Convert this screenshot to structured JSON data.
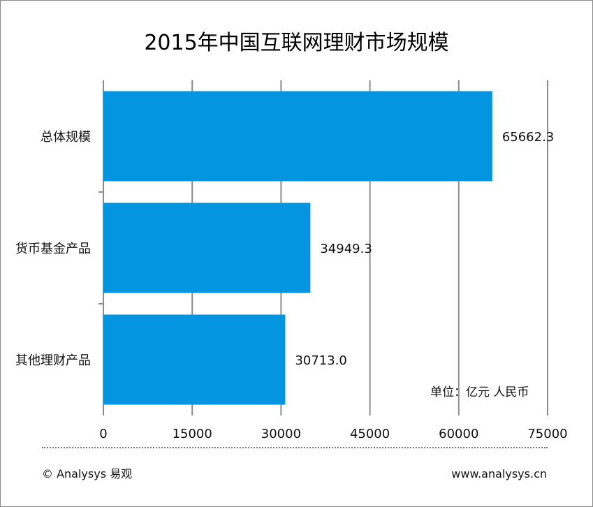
{
  "chart_data": {
    "type": "bar",
    "orientation": "horizontal",
    "title": "2015年中国互联网理财市场规模",
    "categories": [
      "总体规模",
      "货币基金产品",
      "其他理财产品"
    ],
    "values": [
      65662.3,
      34949.3,
      30713.0
    ],
    "value_labels": [
      "65662.3",
      "34949.3",
      "30713.0"
    ],
    "xlim": [
      0,
      75000
    ],
    "xticks": [
      0,
      15000,
      30000,
      45000,
      60000,
      75000
    ],
    "xtick_labels": [
      "0",
      "15000",
      "30000",
      "45000",
      "60000",
      "75000"
    ],
    "xlabel": "",
    "ylabel": "",
    "grid": "vertical",
    "bar_color": "#0395E0",
    "grid_color": "#8C8C8C"
  },
  "unit_note": "单位：亿元 人民币",
  "footer": {
    "left": "© Analysys 易观",
    "right": "www.analysys.cn"
  },
  "colors": {
    "bar": "#0395E0",
    "grid": "#8C8C8C",
    "text": "#111111",
    "border": "#8A8A8A"
  }
}
